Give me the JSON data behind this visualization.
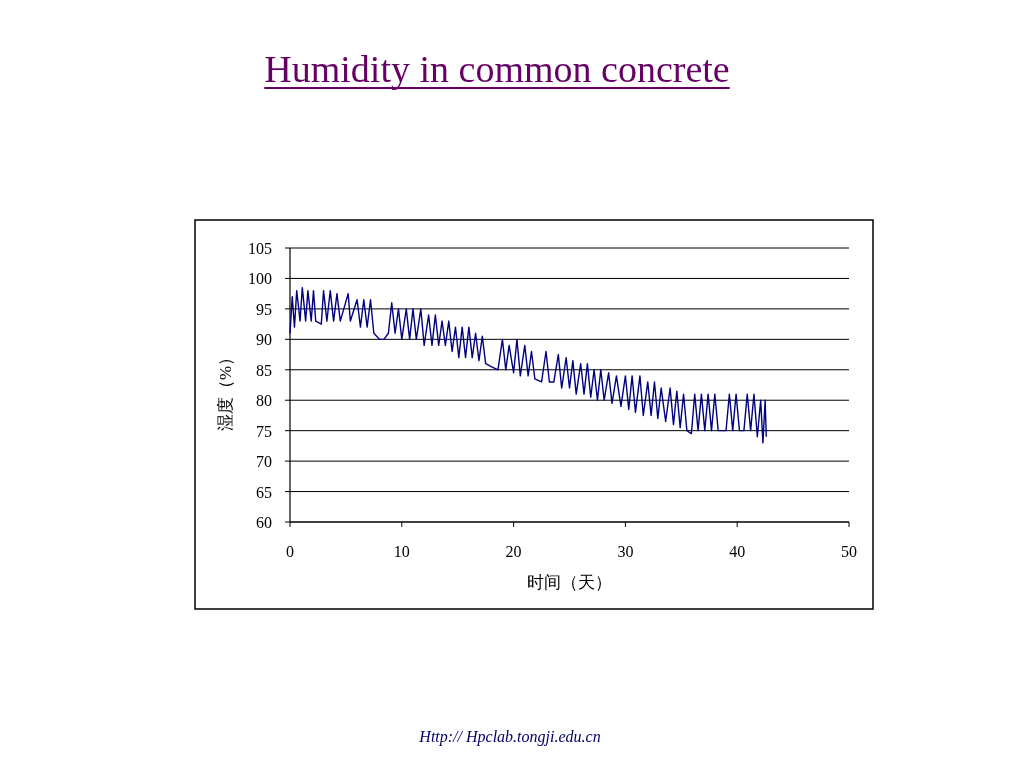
{
  "chart_data": {
    "type": "line",
    "title": "Humidity in common concrete",
    "xlabel": "时间（天）",
    "ylabel": "湿度（%）",
    "xlim": [
      0,
      50
    ],
    "xticks": [
      0,
      10,
      20,
      30,
      40,
      50
    ],
    "ylim": [
      60,
      105
    ],
    "yticks": [
      60,
      65,
      70,
      75,
      80,
      85,
      90,
      95,
      100,
      105
    ],
    "grid": "y",
    "marker": "none",
    "line_style": "solid",
    "annotations": [
      "Http:// Hpclab.tongji.edu.cn"
    ],
    "series": [
      {
        "color": "#000080",
        "x": [
          0,
          0.2,
          0.4,
          0.6,
          0.9,
          1.1,
          1.4,
          1.6,
          1.9,
          2.1,
          2.3,
          2.8,
          3.0,
          3.3,
          3.6,
          3.9,
          4.2,
          4.5,
          5.2,
          5.4,
          6.0,
          6.3,
          6.6,
          6.9,
          7.2,
          7.5,
          8.0,
          8.4,
          8.8,
          9.1,
          9.4,
          9.7,
          10.0,
          10.4,
          10.7,
          11.0,
          11.3,
          11.7,
          12.0,
          12.4,
          12.7,
          13.0,
          13.3,
          13.6,
          13.9,
          14.2,
          14.5,
          14.8,
          15.1,
          15.4,
          15.7,
          16.0,
          16.3,
          16.6,
          16.9,
          17.2,
          17.5,
          18.0,
          18.6,
          19.0,
          19.3,
          19.6,
          20.0,
          20.3,
          20.6,
          21.0,
          21.3,
          21.6,
          21.9,
          22.5,
          22.9,
          23.2,
          23.6,
          24.0,
          24.3,
          24.7,
          25.0,
          25.3,
          25.6,
          26.0,
          26.3,
          26.6,
          26.9,
          27.2,
          27.5,
          27.8,
          28.1,
          28.5,
          28.8,
          29.2,
          29.6,
          30.0,
          30.3,
          30.6,
          30.9,
          31.3,
          31.6,
          32.0,
          32.3,
          32.6,
          32.9,
          33.2,
          33.6,
          34.0,
          34.3,
          34.6,
          34.9,
          35.2,
          35.5,
          35.9,
          36.2,
          36.5,
          36.8,
          37.1,
          37.4,
          37.7,
          38.0,
          38.3,
          39.0,
          39.3,
          39.6,
          39.9,
          40.2,
          40.6,
          40.9,
          41.2,
          41.5,
          41.8,
          42.1,
          42.3,
          42.5,
          42.6
        ],
        "values": [
          91,
          97,
          92,
          98,
          93,
          98.5,
          93,
          98,
          93,
          98,
          93,
          92.5,
          98,
          93,
          98,
          93,
          97.5,
          93,
          97.5,
          93,
          96.5,
          92,
          96.5,
          92,
          96.5,
          91,
          90,
          90,
          91,
          96,
          91,
          95,
          90,
          95,
          90,
          95,
          90,
          95,
          89,
          94,
          89,
          94,
          89,
          93,
          89,
          93,
          88,
          92,
          87,
          92,
          87,
          92,
          87,
          91,
          86.5,
          90.5,
          86,
          85.5,
          85,
          90,
          85,
          89,
          84.5,
          90,
          84,
          89,
          84,
          88,
          83.5,
          83,
          88,
          83,
          83,
          87.5,
          82,
          87,
          82,
          86.5,
          81,
          86,
          81,
          86,
          80.5,
          85,
          80,
          85,
          80,
          84.5,
          79.5,
          84,
          79,
          84,
          78.5,
          84,
          78,
          84,
          77.5,
          83,
          77.5,
          83,
          77,
          82,
          76.5,
          82,
          76,
          81.5,
          75.5,
          81,
          75,
          74.5,
          81,
          75,
          81,
          75,
          81,
          75,
          81,
          75,
          75,
          81,
          75,
          81,
          75,
          75,
          81,
          75,
          81,
          74,
          80,
          73,
          80,
          74
        ]
      }
    ]
  }
}
